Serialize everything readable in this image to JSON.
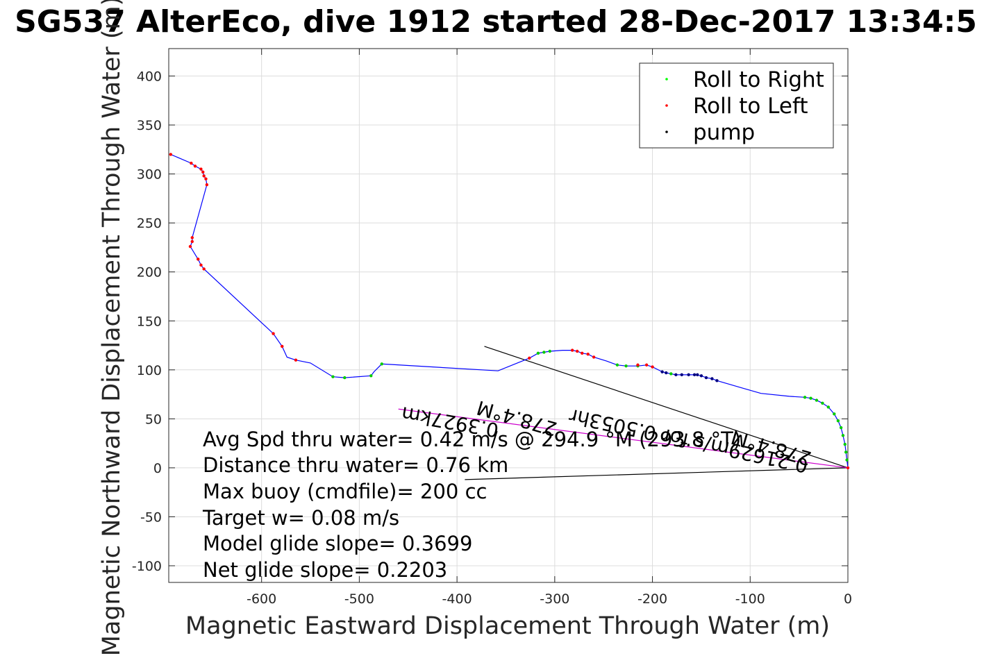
{
  "chart_data": {
    "type": "scatter",
    "title": "SG537 AlterEco, dive 1912 started 28-Dec-2017 13:34:5",
    "xlabel": "Magnetic Eastward Displacement Through Water (m)",
    "ylabel": "Magnetic Northward Displacement Through Water (m)",
    "xlim": [
      -695,
      0
    ],
    "ylim": [
      -117,
      428
    ],
    "xticks": [
      -600,
      -500,
      -400,
      -300,
      -200,
      -100,
      0
    ],
    "yticks": [
      -100,
      -50,
      0,
      50,
      100,
      150,
      200,
      250,
      300,
      350,
      400
    ],
    "grid": true,
    "legend_position": "top-right",
    "colors": {
      "track": "#0000ff",
      "roll_right": "#00cc00",
      "roll_left": "#ff0000",
      "pump": "#000080",
      "avg_vector": "#cc00cc",
      "lines": "#000000"
    },
    "legend": [
      {
        "label": "Roll to Right",
        "color": "#00ff00"
      },
      {
        "label": "Roll to Left",
        "color": "#ff0000"
      },
      {
        "label": "pump",
        "color": "#000000"
      }
    ],
    "series": [
      {
        "name": "track",
        "x": [
          -693,
          -672,
          -668,
          -662,
          -660,
          -659,
          -657,
          -656,
          -671,
          -671,
          -673,
          -665,
          -662,
          -659,
          -588,
          -579,
          -574,
          -565,
          -550,
          -527,
          -515,
          -488,
          -485,
          -477,
          -358,
          -326,
          -317,
          -311,
          -305,
          -292,
          -282,
          -277,
          -272,
          -266,
          -260,
          -247,
          -236,
          -227,
          -215,
          -206,
          -200,
          -190,
          -186,
          -181,
          -176,
          -170,
          -163,
          -157,
          -150,
          -145,
          -139,
          -134,
          -110,
          -89,
          -60,
          -44,
          -38,
          -32,
          -26,
          -20,
          -14,
          -10,
          -7,
          -5,
          -3,
          -2,
          -1,
          0
        ],
        "y": [
          320,
          311,
          308,
          305,
          302,
          298,
          295,
          289,
          235,
          231,
          226,
          213,
          207,
          203,
          137,
          124,
          113,
          110,
          107,
          93,
          92,
          94,
          98,
          106,
          99,
          112,
          117,
          118,
          119,
          120,
          120,
          119,
          117,
          116,
          113,
          109,
          105,
          104,
          104,
          105,
          103,
          98,
          97,
          96,
          95,
          95,
          95,
          95,
          94,
          92,
          91,
          89,
          82,
          76,
          73,
          72,
          71,
          69,
          66,
          62,
          55,
          48,
          41,
          33,
          24,
          16,
          8,
          0
        ]
      },
      {
        "name": "Roll to Right",
        "x": [
          -527,
          -515,
          -488,
          -477,
          -317,
          -311,
          -305,
          -236,
          -227,
          -215,
          -181,
          -44,
          -38,
          -32,
          -26,
          -20,
          -14,
          -10,
          -7,
          -5,
          -3,
          -2,
          -1
        ],
        "y": [
          93,
          92,
          94,
          106,
          117,
          118,
          119,
          105,
          104,
          104,
          96,
          72,
          71,
          69,
          66,
          62,
          55,
          48,
          41,
          33,
          24,
          16,
          8
        ]
      },
      {
        "name": "Roll to Left",
        "x": [
          -693,
          -672,
          -668,
          -662,
          -660,
          -659,
          -657,
          -656,
          -671,
          -671,
          -673,
          -665,
          -662,
          -659,
          -588,
          -579,
          -565,
          -326,
          -282,
          -277,
          -272,
          -266,
          -260,
          -215,
          -206,
          -200,
          0
        ],
        "y": [
          320,
          311,
          308,
          305,
          302,
          298,
          295,
          289,
          235,
          231,
          226,
          213,
          207,
          203,
          137,
          124,
          110,
          112,
          120,
          119,
          117,
          116,
          113,
          105,
          105,
          103,
          0
        ]
      },
      {
        "name": "pump",
        "x": [
          -190,
          -186,
          -176,
          -170,
          -163,
          -157,
          -154,
          -150,
          -145,
          -139,
          -134
        ],
        "y": [
          98,
          97,
          95,
          95,
          95,
          95,
          95,
          94,
          92,
          91,
          89
        ]
      }
    ],
    "reference_lines": [
      {
        "x": [
          0,
          -372
        ],
        "y": [
          0,
          124
        ]
      },
      {
        "x": [
          0,
          -392
        ],
        "y": [
          0,
          -12
        ]
      }
    ],
    "avg_vector": {
      "x": [
        0,
        -460
      ],
      "y": [
        0,
        60
      ]
    },
    "annotations": [
      "Avg Spd thru water=  0.42 m/s @ 294.9 °M (293.8 °T)",
      "Distance thru water=  0.76 km",
      "Max buoy (cmdfile)= 200 cc",
      "Target w= 0.08 m/s",
      "Model glide slope= 0.3699",
      "Net glide slope= 0.2203"
    ],
    "rotated_annotations": [
      "278.4°M",
      "0.3927km",
      "0.21629m/s for 0.5053hr",
      "278.4°M"
    ]
  }
}
